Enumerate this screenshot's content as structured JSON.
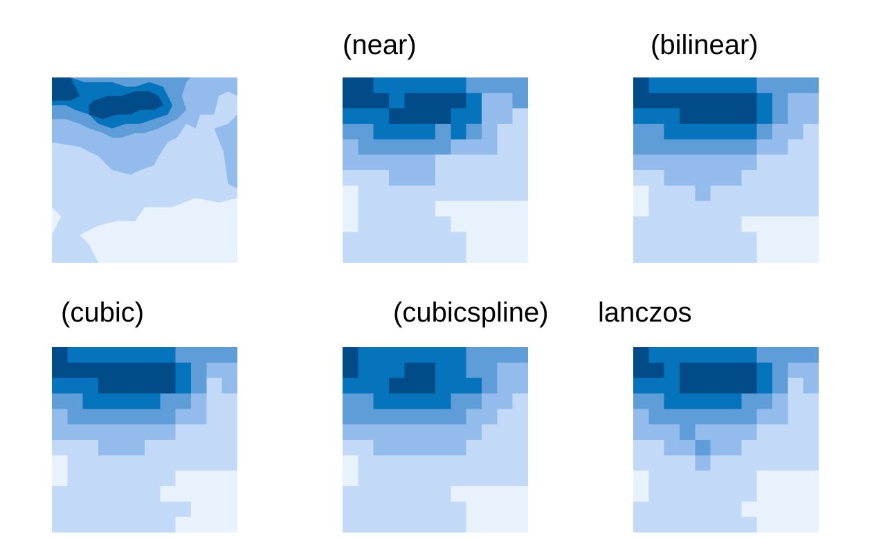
{
  "palette": [
    "#e8f2fd",
    "#c2d9f7",
    "#93bbec",
    "#5f9dd8",
    "#0574bc",
    "#014b88"
  ],
  "chart_data": [
    {
      "type": "heatmap",
      "title": "",
      "rows": 40,
      "cols": 40,
      "contours": {
        "c1": [
          [
            0,
            0
          ],
          [
            40,
            0
          ],
          [
            40,
            26
          ],
          [
            36,
            27
          ],
          [
            31,
            26
          ],
          [
            26,
            28
          ],
          [
            20,
            28
          ],
          [
            18,
            31
          ],
          [
            14,
            31
          ],
          [
            10,
            32
          ],
          [
            8,
            33
          ],
          [
            6,
            34
          ],
          [
            8,
            36
          ],
          [
            9,
            38
          ],
          [
            10,
            40
          ],
          [
            0,
            40
          ],
          [
            0,
            34
          ],
          [
            2,
            30
          ],
          [
            0,
            28
          ]
        ],
        "c2": [
          [
            0,
            0
          ],
          [
            40,
            0
          ],
          [
            40,
            24
          ],
          [
            38,
            23
          ],
          [
            37,
            16
          ],
          [
            35,
            11
          ],
          [
            38,
            10
          ],
          [
            40,
            8
          ],
          [
            40,
            0
          ],
          [
            0,
            0
          ],
          [
            0,
            0
          ]
        ],
        "c2b": [
          [
            0,
            0
          ],
          [
            40,
            0
          ],
          [
            40,
            4
          ],
          [
            38,
            3
          ],
          [
            36,
            4
          ],
          [
            35,
            8
          ],
          [
            32,
            8
          ],
          [
            31,
            11
          ],
          [
            29,
            10
          ],
          [
            27,
            13
          ],
          [
            25,
            14
          ],
          [
            23,
            17
          ],
          [
            22,
            19
          ],
          [
            19,
            20
          ],
          [
            17,
            21
          ],
          [
            13,
            20
          ],
          [
            10,
            17
          ],
          [
            6,
            15
          ],
          [
            0,
            14
          ]
        ],
        "c3": [
          [
            0,
            0
          ],
          [
            30,
            0
          ],
          [
            29,
            1
          ],
          [
            28,
            4
          ],
          [
            29,
            7
          ],
          [
            27,
            9
          ],
          [
            25,
            10
          ],
          [
            23,
            11
          ],
          [
            20,
            12
          ],
          [
            18,
            12
          ],
          [
            15,
            13
          ],
          [
            13,
            13
          ],
          [
            11,
            12
          ],
          [
            8,
            11
          ],
          [
            6,
            10
          ],
          [
            3,
            9
          ],
          [
            0,
            9
          ]
        ],
        "c4": [
          [
            0,
            0
          ],
          [
            4,
            0
          ],
          [
            7,
            1
          ],
          [
            10,
            1
          ],
          [
            13,
            1
          ],
          [
            16,
            2
          ],
          [
            18,
            2
          ],
          [
            21,
            1
          ],
          [
            24,
            2
          ],
          [
            25,
            4
          ],
          [
            26,
            6
          ],
          [
            25,
            8
          ],
          [
            22,
            9
          ],
          [
            19,
            10
          ],
          [
            16,
            10
          ],
          [
            13,
            11
          ],
          [
            10,
            10
          ],
          [
            8,
            8
          ],
          [
            5,
            7
          ],
          [
            3,
            6
          ],
          [
            0,
            6
          ]
        ],
        "c5": [
          [
            0,
            0
          ],
          [
            4,
            0
          ],
          [
            5,
            2
          ],
          [
            6,
            4
          ],
          [
            4,
            5
          ],
          [
            0,
            5
          ]
        ],
        "c5b": [
          [
            9,
            5
          ],
          [
            12,
            4
          ],
          [
            15,
            4
          ],
          [
            18,
            3
          ],
          [
            21,
            3
          ],
          [
            23,
            4
          ],
          [
            24,
            6
          ],
          [
            22,
            7
          ],
          [
            19,
            7
          ],
          [
            17,
            8
          ],
          [
            14,
            8
          ],
          [
            11,
            9
          ],
          [
            8,
            8
          ],
          [
            8,
            6
          ]
        ]
      }
    },
    {
      "type": "heatmap",
      "title": "(near)",
      "rows": 12,
      "cols": 12,
      "grid": [
        "554444443333",
        "555455554223",
        "444555544221",
        "334444343211",
        "233333322211",
        "222222111111",
        "111222111111",
        "011111111111",
        "011111000000",
        "011111100000",
        "111111110000",
        "111111110000"
      ]
    },
    {
      "type": "heatmap",
      "title": "(bilinear)",
      "rows": 12,
      "cols": 12,
      "grid": [
        "544444443333",
        "555555554322",
        "444555554322",
        "334444443221",
        "333333332211",
        "222222221111",
        "112222211111",
        "011121111111",
        "011111111111",
        "111111100000",
        "111111110000",
        "111111110000"
      ]
    },
    {
      "type": "heatmap",
      "title": "(cubic)",
      "rows": 12,
      "cols": 12,
      "grid": [
        "544444443333",
        "555555554322",
        "444555554312",
        "334444433211",
        "233333332211",
        "222222221111",
        "111222111111",
        "011111111111",
        "011111110000",
        "111111100000",
        "111111111000",
        "111111110000"
      ]
    },
    {
      "type": "heatmap",
      "title": "(cubicspline)",
      "rows": 12,
      "cols": 12,
      "grid": [
        "544444443333",
        "544455443322",
        "444555444322",
        "334444433221",
        "333333332211",
        "222222222111",
        "112222221111",
        "011111111111",
        "011111111111",
        "111111100000",
        "111111110000",
        "111111110000"
      ]
    },
    {
      "type": "heatmap",
      "title": "lanczos",
      "rows": 12,
      "cols": 12,
      "grid": [
        "544444443333",
        "554555554322",
        "444555554312",
        "334444433211",
        "233333332211",
        "222322221111",
        "112232211111",
        "111121111111",
        "011111110000",
        "011111110000",
        "111111100000",
        "111111110000"
      ]
    }
  ]
}
